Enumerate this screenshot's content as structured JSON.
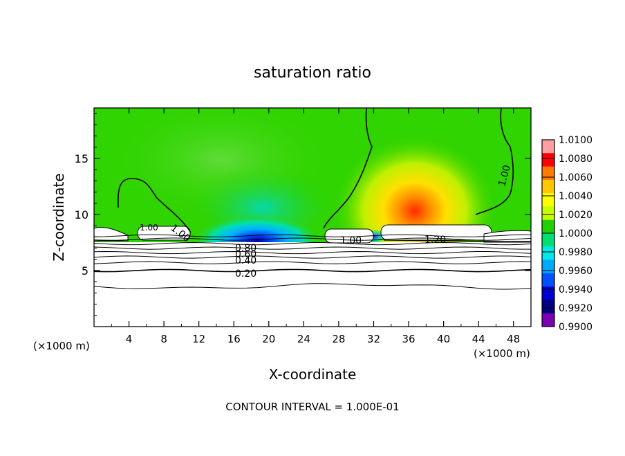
{
  "chart_data": {
    "type": "heatmap",
    "title": "saturation ratio",
    "xlabel": "X-coordinate",
    "ylabel": "Z-coordinate",
    "x_unit_left": "(×1000 m)",
    "x_unit_right": "(×1000 m)",
    "footer": "CONTOUR INTERVAL = 1.000E-01",
    "xlim": [
      0,
      50
    ],
    "ylim": [
      0,
      19.5
    ],
    "x_ticks": [
      4,
      8,
      12,
      16,
      20,
      24,
      28,
      32,
      36,
      40,
      44,
      48
    ],
    "x_tick_labels": [
      "4",
      "8",
      "12",
      "16",
      "20",
      "24",
      "28",
      "32",
      "36",
      "40",
      "44",
      "48"
    ],
    "y_ticks": [
      5,
      10,
      15
    ],
    "y_tick_labels": [
      "5",
      "10",
      "15"
    ],
    "colorbar": {
      "min": 0.99,
      "max": 1.01,
      "labels": [
        "1.0100",
        "1.0080",
        "1.0060",
        "1.0040",
        "1.0020",
        "1.0000",
        "0.9980",
        "0.9960",
        "0.9940",
        "0.9920",
        "0.9900"
      ],
      "colors": [
        "#ff9e9e",
        "#ff0000",
        "#ff7a00",
        "#ffc800",
        "#ffff00",
        "#c8ff00",
        "#20d000",
        "#00e070",
        "#00e8e8",
        "#00a8ff",
        "#0050ff",
        "#0000d0",
        "#000080",
        "#7a00b0"
      ]
    },
    "contour_labels": [
      "1.00",
      "1.00",
      "1.00",
      "1.00",
      "1.20",
      "0.80",
      "0.60",
      "0.40",
      "0.20"
    ],
    "contour_levels": [
      0.2,
      0.3,
      0.4,
      0.5,
      0.6,
      0.7,
      0.8,
      0.9,
      1.0,
      1.1,
      1.2
    ],
    "background_color": "#30d400"
  }
}
